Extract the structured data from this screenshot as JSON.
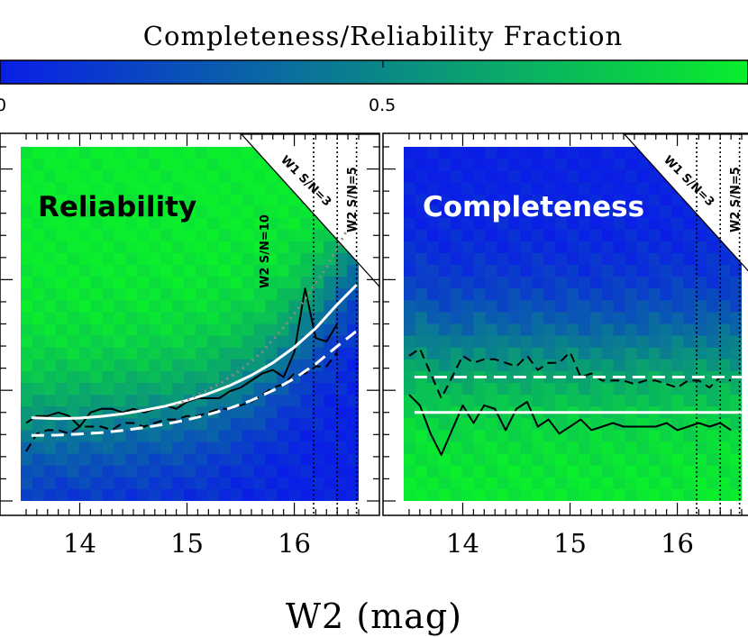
{
  "colorbar": {
    "title": "Completeness/Reliability Fraction",
    "tick_labels": [
      "0",
      "0.5"
    ],
    "range": [
      0,
      1
    ],
    "color_low": "#0a1ee6",
    "color_high": "#0aee2c"
  },
  "chart_data": [
    {
      "type": "heatmap",
      "panel_label": "Reliability",
      "xlabel": "W2 (mag)",
      "x_ticks": [
        14,
        15,
        16
      ],
      "x_tick_labels": [
        "14",
        "15",
        "16"
      ],
      "xlim": [
        13.45,
        16.6
      ],
      "threshold_lines": [
        {
          "x": 16.18,
          "label": "W2 S/N=10"
        },
        {
          "x": 16.4,
          "label": "W1 S/N=3"
        },
        {
          "x": 16.58,
          "label": "W2 S/N=5"
        }
      ],
      "boundary_column_y_norm": [
        0.2,
        0.21,
        0.21,
        0.22,
        0.21,
        0.22,
        0.22,
        0.23,
        0.23,
        0.24,
        0.24,
        0.25,
        0.25,
        0.26,
        0.27,
        0.28,
        0.29,
        0.31,
        0.33,
        0.35,
        0.37,
        0.4,
        0.43,
        0.47,
        0.51,
        0.55,
        0.6,
        0.65,
        0.7
      ],
      "series": [
        {
          "style": "solid-black",
          "x": [
            13.5,
            13.6,
            13.7,
            13.8,
            13.9,
            14.0,
            14.1,
            14.2,
            14.3,
            14.4,
            14.5,
            14.6,
            14.7,
            14.8,
            14.9,
            15.0,
            15.1,
            15.2,
            15.3,
            15.4,
            15.5,
            15.6,
            15.7,
            15.8,
            15.9,
            16.0,
            16.1,
            16.2,
            16.3,
            16.4
          ],
          "y_norm": [
            0.22,
            0.24,
            0.24,
            0.25,
            0.24,
            0.21,
            0.25,
            0.26,
            0.26,
            0.25,
            0.26,
            0.25,
            0.26,
            0.27,
            0.26,
            0.28,
            0.29,
            0.29,
            0.29,
            0.31,
            0.32,
            0.34,
            0.36,
            0.37,
            0.35,
            0.42,
            0.6,
            0.46,
            0.45,
            0.5
          ]
        },
        {
          "style": "dashed-black",
          "x": [
            13.5,
            13.6,
            13.7,
            13.8,
            13.9,
            14.0,
            14.1,
            14.2,
            14.3,
            14.4,
            14.5,
            14.6,
            14.7,
            14.8,
            14.9,
            15.0,
            15.1,
            15.2,
            15.3,
            15.4,
            15.5,
            15.6,
            15.7,
            15.8,
            15.9,
            16.0,
            16.1,
            16.2,
            16.3,
            16.4
          ],
          "y_norm": [
            0.14,
            0.19,
            0.2,
            0.2,
            0.19,
            0.21,
            0.21,
            0.21,
            0.2,
            0.22,
            0.22,
            0.21,
            0.22,
            0.23,
            0.23,
            0.24,
            0.24,
            0.25,
            0.26,
            0.26,
            0.27,
            0.28,
            0.3,
            0.32,
            0.33,
            0.36,
            0.36,
            0.38,
            0.38,
            0.42
          ]
        },
        {
          "style": "solid-white",
          "x": [
            13.55,
            13.8,
            14.0,
            14.2,
            14.4,
            14.6,
            14.8,
            15.0,
            15.2,
            15.4,
            15.6,
            15.8,
            16.0,
            16.2,
            16.4,
            16.58
          ],
          "y_norm": [
            0.235,
            0.232,
            0.234,
            0.239,
            0.246,
            0.256,
            0.268,
            0.284,
            0.303,
            0.326,
            0.355,
            0.39,
            0.434,
            0.488,
            0.555,
            0.61
          ]
        },
        {
          "style": "dashed-white",
          "x": [
            13.55,
            13.8,
            14.0,
            14.2,
            14.4,
            14.6,
            14.8,
            15.0,
            15.2,
            15.4,
            15.6,
            15.8,
            16.0,
            16.2,
            16.4,
            16.58
          ],
          "y_norm": [
            0.185,
            0.186,
            0.189,
            0.193,
            0.199,
            0.207,
            0.217,
            0.229,
            0.244,
            0.262,
            0.284,
            0.312,
            0.346,
            0.387,
            0.437,
            0.48
          ]
        },
        {
          "style": "dotted-gray",
          "x": [
            14.9,
            15.1,
            15.3,
            15.5,
            15.7,
            15.9,
            16.1,
            16.3,
            16.5
          ],
          "y_norm": [
            0.27,
            0.3,
            0.33,
            0.37,
            0.42,
            0.49,
            0.57,
            0.66,
            0.77
          ]
        }
      ]
    },
    {
      "type": "heatmap",
      "panel_label": "Completeness",
      "xlabel": "W2 (mag)",
      "x_ticks": [
        14,
        15,
        16
      ],
      "x_tick_labels": [
        "14",
        "15",
        "16"
      ],
      "xlim": [
        13.45,
        16.6
      ],
      "threshold_lines": [
        {
          "x": 16.18,
          "label": ""
        },
        {
          "x": 16.4,
          "label": "W1 S/N=3"
        },
        {
          "x": 16.58,
          "label": "W2 S/N=5"
        }
      ],
      "boundary_column_y_norm": [
        0.44,
        0.46,
        0.43,
        0.42,
        0.43,
        0.42,
        0.44,
        0.43,
        0.42,
        0.43,
        0.42,
        0.43,
        0.42,
        0.42,
        0.43,
        0.41,
        0.42,
        0.42,
        0.41,
        0.42,
        0.42,
        0.43,
        0.42,
        0.43,
        0.42,
        0.43,
        0.42,
        0.43,
        0.42
      ],
      "series": [
        {
          "style": "solid-black",
          "x": [
            13.5,
            13.6,
            13.7,
            13.8,
            13.9,
            14.0,
            14.1,
            14.2,
            14.3,
            14.4,
            14.5,
            14.6,
            14.7,
            14.8,
            14.9,
            15.0,
            15.1,
            15.2,
            15.3,
            15.4,
            15.5,
            15.6,
            15.7,
            15.8,
            15.9,
            16.0,
            16.1,
            16.2,
            16.3,
            16.4,
            16.5
          ],
          "y_norm": [
            0.3,
            0.27,
            0.19,
            0.13,
            0.2,
            0.27,
            0.22,
            0.27,
            0.26,
            0.2,
            0.26,
            0.28,
            0.21,
            0.23,
            0.19,
            0.21,
            0.23,
            0.2,
            0.21,
            0.22,
            0.21,
            0.21,
            0.21,
            0.21,
            0.22,
            0.2,
            0.21,
            0.22,
            0.21,
            0.22,
            0.2
          ]
        },
        {
          "style": "dashed-black",
          "x": [
            13.5,
            13.6,
            13.7,
            13.8,
            13.9,
            14.0,
            14.1,
            14.2,
            14.3,
            14.4,
            14.5,
            14.6,
            14.7,
            14.8,
            14.9,
            15.0,
            15.1,
            15.2,
            15.3,
            15.4,
            15.5,
            15.6,
            15.7,
            15.8,
            15.9,
            16.0,
            16.1,
            16.2,
            16.3,
            16.4,
            16.5
          ],
          "y_norm": [
            0.41,
            0.43,
            0.36,
            0.29,
            0.35,
            0.41,
            0.39,
            0.4,
            0.4,
            0.39,
            0.38,
            0.41,
            0.37,
            0.39,
            0.39,
            0.42,
            0.35,
            0.36,
            0.34,
            0.34,
            0.34,
            0.33,
            0.34,
            0.34,
            0.33,
            0.32,
            0.34,
            0.34,
            0.32,
            0.35,
            0.34
          ]
        },
        {
          "style": "solid-white",
          "x": [
            13.55,
            16.6
          ],
          "y_norm": [
            0.25,
            0.25
          ]
        },
        {
          "style": "dashed-white",
          "x": [
            13.55,
            16.6
          ],
          "y_norm": [
            0.35,
            0.35
          ]
        }
      ]
    }
  ]
}
